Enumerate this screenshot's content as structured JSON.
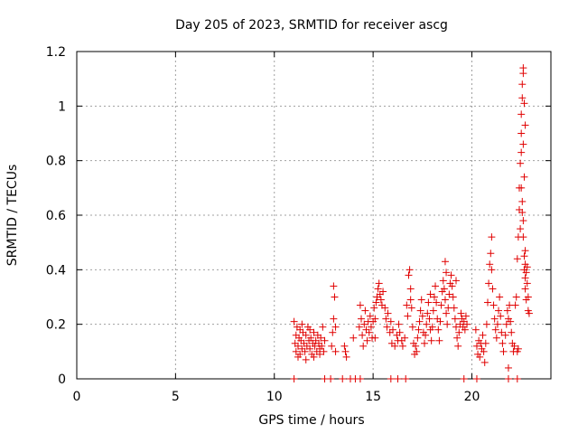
{
  "chart_data": {
    "type": "scatter",
    "title": "Day 205 of 2023, SRMTID for receiver ascg",
    "xlabel": "GPS time / hours",
    "ylabel": "SRMTID / TECUs",
    "xlim": [
      0,
      24
    ],
    "ylim": [
      0,
      1.2
    ],
    "x_ticks": [
      0,
      5,
      10,
      15,
      20
    ],
    "x_tick_labels": [
      "0",
      "5",
      "10",
      "15",
      "20"
    ],
    "y_ticks": [
      0,
      0.2,
      0.4,
      0.6,
      0.8,
      1.0,
      1.2
    ],
    "y_tick_labels": [
      "0",
      "0.2",
      "0.4",
      "0.6",
      "0.8",
      "1",
      "1.2"
    ],
    "grid": true,
    "marker": "+",
    "color": "#e00000",
    "series": [
      {
        "name": "SRMTID",
        "points": [
          [
            11.0,
            0.21
          ],
          [
            11.05,
            0.13
          ],
          [
            11.1,
            0.1
          ],
          [
            11.1,
            0.16
          ],
          [
            11.15,
            0.19
          ],
          [
            11.2,
            0.12
          ],
          [
            11.25,
            0.15
          ],
          [
            11.3,
            0.09
          ],
          [
            11.3,
            0.18
          ],
          [
            11.35,
            0.14
          ],
          [
            11.4,
            0.11
          ],
          [
            11.45,
            0.17
          ],
          [
            11.5,
            0.13
          ],
          [
            11.55,
            0.1
          ],
          [
            11.6,
            0.16
          ],
          [
            11.65,
            0.12
          ],
          [
            11.7,
            0.19
          ],
          [
            11.75,
            0.14
          ],
          [
            11.8,
            0.11
          ],
          [
            11.85,
            0.15
          ],
          [
            11.9,
            0.09
          ],
          [
            11.95,
            0.13
          ],
          [
            12.0,
            0.17
          ],
          [
            12.05,
            0.12
          ],
          [
            12.1,
            0.14
          ],
          [
            12.15,
            0.1
          ],
          [
            12.2,
            0.16
          ],
          [
            12.25,
            0.13
          ],
          [
            12.3,
            0.11
          ],
          [
            12.35,
            0.15
          ],
          [
            12.4,
            0.12
          ],
          [
            12.45,
            0.19
          ],
          [
            12.5,
            0.1
          ],
          [
            12.55,
            0.14
          ],
          [
            11.2,
            0.08
          ],
          [
            11.6,
            0.07
          ],
          [
            12.0,
            0.08
          ],
          [
            12.3,
            0.09
          ],
          [
            11.4,
            0.2
          ],
          [
            11.8,
            0.18
          ],
          [
            12.9,
            0.12
          ],
          [
            12.95,
            0.17
          ],
          [
            13.0,
            0.22
          ],
          [
            13.0,
            0.34
          ],
          [
            13.05,
            0.3
          ],
          [
            13.1,
            0.19
          ],
          [
            13.1,
            0.1
          ],
          [
            13.55,
            0.12
          ],
          [
            13.6,
            0.1
          ],
          [
            13.65,
            0.08
          ],
          [
            14.0,
            0.15
          ],
          [
            14.3,
            0.19
          ],
          [
            14.35,
            0.27
          ],
          [
            14.4,
            0.22
          ],
          [
            14.45,
            0.16
          ],
          [
            14.5,
            0.12
          ],
          [
            14.55,
            0.2
          ],
          [
            14.6,
            0.25
          ],
          [
            14.65,
            0.18
          ],
          [
            14.7,
            0.14
          ],
          [
            14.75,
            0.21
          ],
          [
            14.8,
            0.17
          ],
          [
            14.85,
            0.23
          ],
          [
            14.9,
            0.19
          ],
          [
            14.95,
            0.15
          ],
          [
            15.0,
            0.21
          ],
          [
            15.05,
            0.26
          ],
          [
            15.1,
            0.22
          ],
          [
            15.15,
            0.28
          ],
          [
            15.2,
            0.3
          ],
          [
            15.25,
            0.33
          ],
          [
            15.3,
            0.35
          ],
          [
            15.35,
            0.31
          ],
          [
            15.4,
            0.29
          ],
          [
            15.45,
            0.27
          ],
          [
            15.5,
            0.32
          ],
          [
            15.6,
            0.26
          ],
          [
            15.65,
            0.22
          ],
          [
            15.7,
            0.19
          ],
          [
            15.75,
            0.24
          ],
          [
            15.85,
            0.17
          ],
          [
            15.9,
            0.21
          ],
          [
            15.95,
            0.13
          ],
          [
            16.0,
            0.18
          ],
          [
            16.1,
            0.12
          ],
          [
            16.2,
            0.16
          ],
          [
            16.25,
            0.14
          ],
          [
            16.3,
            0.2
          ],
          [
            16.35,
            0.17
          ],
          [
            16.45,
            0.14
          ],
          [
            16.5,
            0.12
          ],
          [
            16.6,
            0.15
          ],
          [
            16.7,
            0.27
          ],
          [
            16.75,
            0.23
          ],
          [
            16.8,
            0.38
          ],
          [
            16.85,
            0.4
          ],
          [
            16.9,
            0.33
          ],
          [
            16.95,
            0.26
          ],
          [
            17.0,
            0.19
          ],
          [
            17.05,
            0.13
          ],
          [
            17.1,
            0.09
          ],
          [
            17.15,
            0.12
          ],
          [
            17.2,
            0.1
          ],
          [
            17.25,
            0.15
          ],
          [
            17.3,
            0.18
          ],
          [
            17.35,
            0.21
          ],
          [
            17.4,
            0.25
          ],
          [
            17.45,
            0.29
          ],
          [
            17.5,
            0.23
          ],
          [
            17.55,
            0.17
          ],
          [
            17.6,
            0.13
          ],
          [
            17.65,
            0.16
          ],
          [
            17.7,
            0.2
          ],
          [
            17.75,
            0.24
          ],
          [
            17.8,
            0.28
          ],
          [
            17.85,
            0.22
          ],
          [
            17.9,
            0.18
          ],
          [
            17.95,
            0.14
          ],
          [
            18.0,
            0.19
          ],
          [
            18.05,
            0.25
          ],
          [
            18.1,
            0.3
          ],
          [
            18.15,
            0.34
          ],
          [
            18.2,
            0.28
          ],
          [
            18.25,
            0.22
          ],
          [
            18.3,
            0.18
          ],
          [
            18.35,
            0.14
          ],
          [
            18.4,
            0.21
          ],
          [
            18.45,
            0.27
          ],
          [
            18.5,
            0.32
          ],
          [
            18.55,
            0.36
          ],
          [
            18.6,
            0.33
          ],
          [
            18.65,
            0.29
          ],
          [
            18.7,
            0.24
          ],
          [
            18.75,
            0.2
          ],
          [
            18.8,
            0.26
          ],
          [
            18.85,
            0.31
          ],
          [
            18.9,
            0.35
          ],
          [
            18.95,
            0.38
          ],
          [
            19.0,
            0.34
          ],
          [
            19.05,
            0.3
          ],
          [
            19.1,
            0.26
          ],
          [
            19.15,
            0.22
          ],
          [
            19.2,
            0.19
          ],
          [
            19.25,
            0.15
          ],
          [
            19.3,
            0.12
          ],
          [
            19.35,
            0.17
          ],
          [
            19.4,
            0.2
          ],
          [
            19.45,
            0.24
          ],
          [
            19.5,
            0.22
          ],
          [
            19.55,
            0.19
          ],
          [
            19.6,
            0.21
          ],
          [
            19.65,
            0.18
          ],
          [
            19.7,
            0.23
          ],
          [
            19.75,
            0.2
          ],
          [
            18.65,
            0.43
          ],
          [
            18.7,
            0.39
          ],
          [
            19.2,
            0.36
          ],
          [
            17.9,
            0.31
          ],
          [
            16.9,
            0.29
          ],
          [
            15.1,
            0.15
          ],
          [
            20.2,
            0.18
          ],
          [
            20.25,
            0.12
          ],
          [
            20.3,
            0.09
          ],
          [
            20.35,
            0.14
          ],
          [
            20.4,
            0.08
          ],
          [
            20.45,
            0.13
          ],
          [
            20.5,
            0.11
          ],
          [
            20.55,
            0.16
          ],
          [
            20.6,
            0.1
          ],
          [
            20.65,
            0.06
          ],
          [
            20.7,
            0.13
          ],
          [
            20.75,
            0.2
          ],
          [
            20.8,
            0.28
          ],
          [
            20.85,
            0.35
          ],
          [
            20.9,
            0.42
          ],
          [
            20.95,
            0.46
          ],
          [
            21.0,
            0.52
          ],
          [
            21.0,
            0.4
          ],
          [
            21.05,
            0.33
          ],
          [
            21.1,
            0.27
          ],
          [
            21.15,
            0.22
          ],
          [
            21.2,
            0.18
          ],
          [
            21.25,
            0.15
          ],
          [
            21.3,
            0.2
          ],
          [
            21.35,
            0.25
          ],
          [
            21.4,
            0.3
          ],
          [
            21.45,
            0.23
          ],
          [
            21.5,
            0.17
          ],
          [
            21.55,
            0.13
          ],
          [
            21.6,
            0.1
          ],
          [
            21.7,
            0.16
          ],
          [
            21.75,
            0.2
          ],
          [
            21.8,
            0.25
          ],
          [
            21.85,
            0.22
          ],
          [
            21.9,
            0.27
          ],
          [
            21.95,
            0.21
          ],
          [
            22.0,
            0.17
          ],
          [
            22.05,
            0.13
          ],
          [
            22.1,
            0.1
          ],
          [
            22.15,
            0.12
          ],
          [
            21.85,
            0.04
          ],
          [
            22.3,
            0.1
          ],
          [
            22.35,
            0.11
          ],
          [
            22.2,
            0.27
          ],
          [
            22.25,
            0.3
          ],
          [
            22.3,
            0.44
          ],
          [
            22.35,
            0.52
          ],
          [
            22.4,
            0.62
          ],
          [
            22.4,
            0.7
          ],
          [
            22.45,
            0.55
          ],
          [
            22.45,
            0.79
          ],
          [
            22.5,
            0.83
          ],
          [
            22.5,
            0.9
          ],
          [
            22.5,
            0.97
          ],
          [
            22.55,
            1.03
          ],
          [
            22.55,
            1.08
          ],
          [
            22.6,
            1.12
          ],
          [
            22.6,
            1.14
          ],
          [
            22.65,
            1.01
          ],
          [
            22.5,
            0.7
          ],
          [
            22.55,
            0.65
          ],
          [
            22.6,
            0.58
          ],
          [
            22.6,
            0.52
          ],
          [
            22.65,
            0.45
          ],
          [
            22.65,
            0.4
          ],
          [
            22.7,
            0.37
          ],
          [
            22.7,
            0.42
          ],
          [
            22.75,
            0.39
          ],
          [
            22.8,
            0.35
          ],
          [
            22.8,
            0.41
          ],
          [
            22.85,
            0.3
          ],
          [
            22.85,
            0.25
          ],
          [
            22.7,
            0.33
          ],
          [
            22.75,
            0.29
          ],
          [
            22.9,
            0.24
          ],
          [
            22.6,
            0.86
          ],
          [
            22.7,
            0.93
          ],
          [
            22.65,
            0.74
          ],
          [
            22.55,
            0.61
          ],
          [
            22.7,
            0.47
          ],
          [
            11.0,
            0.0
          ],
          [
            12.55,
            0.0
          ],
          [
            12.85,
            0.0
          ],
          [
            13.45,
            0.0
          ],
          [
            13.85,
            0.0
          ],
          [
            14.1,
            0.0
          ],
          [
            14.35,
            0.0
          ],
          [
            15.9,
            0.0
          ],
          [
            16.25,
            0.0
          ],
          [
            16.65,
            0.0
          ],
          [
            19.6,
            0.0
          ],
          [
            20.25,
            0.0
          ],
          [
            21.85,
            0.0
          ],
          [
            22.3,
            0.0
          ]
        ]
      }
    ]
  }
}
